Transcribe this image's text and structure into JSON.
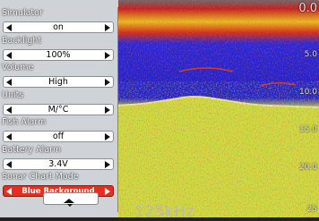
{
  "menu": {
    "items": [
      {
        "label": "Simulator",
        "value": "on"
      },
      {
        "label": "Backlight",
        "value": "100%"
      },
      {
        "label": "Volume",
        "value": "High"
      },
      {
        "label": "Units",
        "value": "M/°C"
      },
      {
        "label": "Fish Alarm",
        "value": "off"
      },
      {
        "label": "Battery Alarm",
        "value": "3.4V"
      },
      {
        "label": "Sonar Chart Mode",
        "value": "Blue Background"
      }
    ]
  },
  "sonar": {
    "depth_labels": [
      "0.0",
      "5.0",
      "10.0",
      "15.0",
      "20.0",
      "25"
    ],
    "frequency": "125kHz"
  }
}
